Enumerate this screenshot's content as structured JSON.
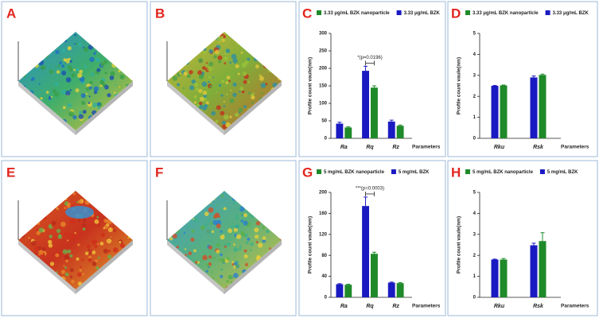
{
  "image_panels": [
    {
      "label": "A"
    },
    {
      "label": "B"
    },
    {
      "label": "E"
    },
    {
      "label": "F"
    }
  ],
  "chart_data": [
    {
      "type": "bar",
      "label": "C",
      "x_label": "Parameters",
      "y_label": "Profile count vaule(nm)",
      "categories": [
        "Ra",
        "Rq",
        "Rz"
      ],
      "series": [
        {
          "name": "3.33 μg/mL BZK nanoparticle",
          "color": "#1f8a2a",
          "values": [
            31,
            145,
            36
          ],
          "errors": [
            2,
            5,
            2
          ]
        },
        {
          "name": "3.33 μg/mL BZK",
          "color": "#1a1ac2",
          "values": [
            42,
            193,
            48
          ],
          "errors": [
            4,
            13,
            4
          ]
        }
      ],
      "ylim": [
        0,
        300
      ],
      "yticks": [
        0,
        50,
        100,
        150,
        200,
        250,
        300
      ],
      "annotation": "*(p=0.0196)"
    },
    {
      "type": "bar",
      "label": "D",
      "x_label": "Parameters",
      "y_label": "Profile count vaule(nm)",
      "categories": [
        "Rku",
        "Rsk"
      ],
      "series": [
        {
          "name": "3.33 μg/mL BZK nanoparticle",
          "color": "#1f8a2a",
          "values": [
            2.52,
            3.02
          ],
          "errors": [
            0.02,
            0.04
          ]
        },
        {
          "name": "3.33 μg/mL BZK",
          "color": "#1a1ac2",
          "values": [
            2.5,
            2.9
          ],
          "errors": [
            0.02,
            0.07
          ]
        }
      ],
      "ylim": [
        0,
        5
      ],
      "yticks": [
        0,
        1,
        2,
        3,
        4,
        5
      ]
    },
    {
      "type": "bar",
      "label": "G",
      "x_label": "Parameters",
      "y_label": "Profile count vaule(nm)",
      "categories": [
        "Ra",
        "Rq",
        "Rz"
      ],
      "series": [
        {
          "name": "5 mg/mL BZK nanoparticle",
          "color": "#1f8a2a",
          "values": [
            24,
            83,
            27
          ],
          "errors": [
            1,
            3,
            1
          ]
        },
        {
          "name": "5 mg/mL BZK",
          "color": "#1a1ac2",
          "values": [
            25,
            174,
            28
          ],
          "errors": [
            1,
            17,
            1
          ]
        }
      ],
      "ylim": [
        0,
        200
      ],
      "yticks": [
        0,
        40,
        80,
        120,
        160,
        200
      ],
      "annotation": "***(p=0.0003)"
    },
    {
      "type": "bar",
      "label": "H",
      "x_label": "Parameters",
      "y_label": "Profile count vaule(nm)",
      "categories": [
        "Rku",
        "Rsk"
      ],
      "series": [
        {
          "name": "5 mg/mL BZK nanoparticle",
          "color": "#1f8a2a",
          "values": [
            1.8,
            2.68
          ],
          "errors": [
            0.05,
            0.4
          ]
        },
        {
          "name": "5 mg/mL BZK",
          "color": "#1a1ac2",
          "values": [
            1.8,
            2.48
          ],
          "errors": [
            0.02,
            0.1
          ]
        }
      ],
      "ylim": [
        0,
        5
      ],
      "yticks": [
        0,
        1,
        2,
        3,
        4,
        5
      ]
    }
  ]
}
